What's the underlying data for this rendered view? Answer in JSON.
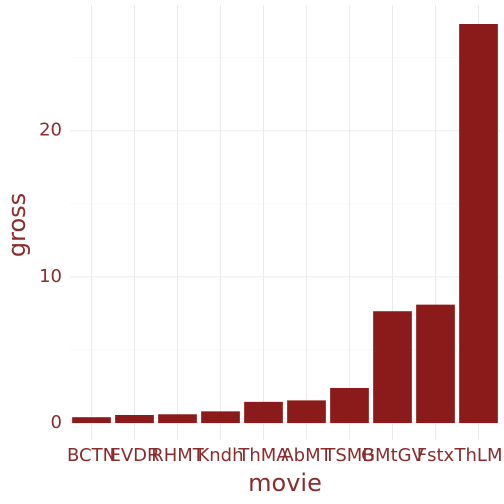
{
  "chart_data": {
    "type": "bar",
    "categories": [
      "BCTN",
      "EVDR",
      "RHMT",
      "Kndh",
      "ThMA",
      "AbMT",
      "TSMB",
      "GMtGV",
      "Fstx",
      "ThLM"
    ],
    "values": [
      0.4,
      0.55,
      0.6,
      0.8,
      1.45,
      1.55,
      2.4,
      7.65,
      8.1,
      27.3
    ],
    "color": "#8b1a1a",
    "x_label": "movie",
    "y_label": "gross",
    "ylim": [
      -1.16,
      28.6
    ],
    "yticks": [
      0,
      10,
      20
    ],
    "minor_yticks": [
      5,
      15,
      25
    ],
    "grid": true
  }
}
